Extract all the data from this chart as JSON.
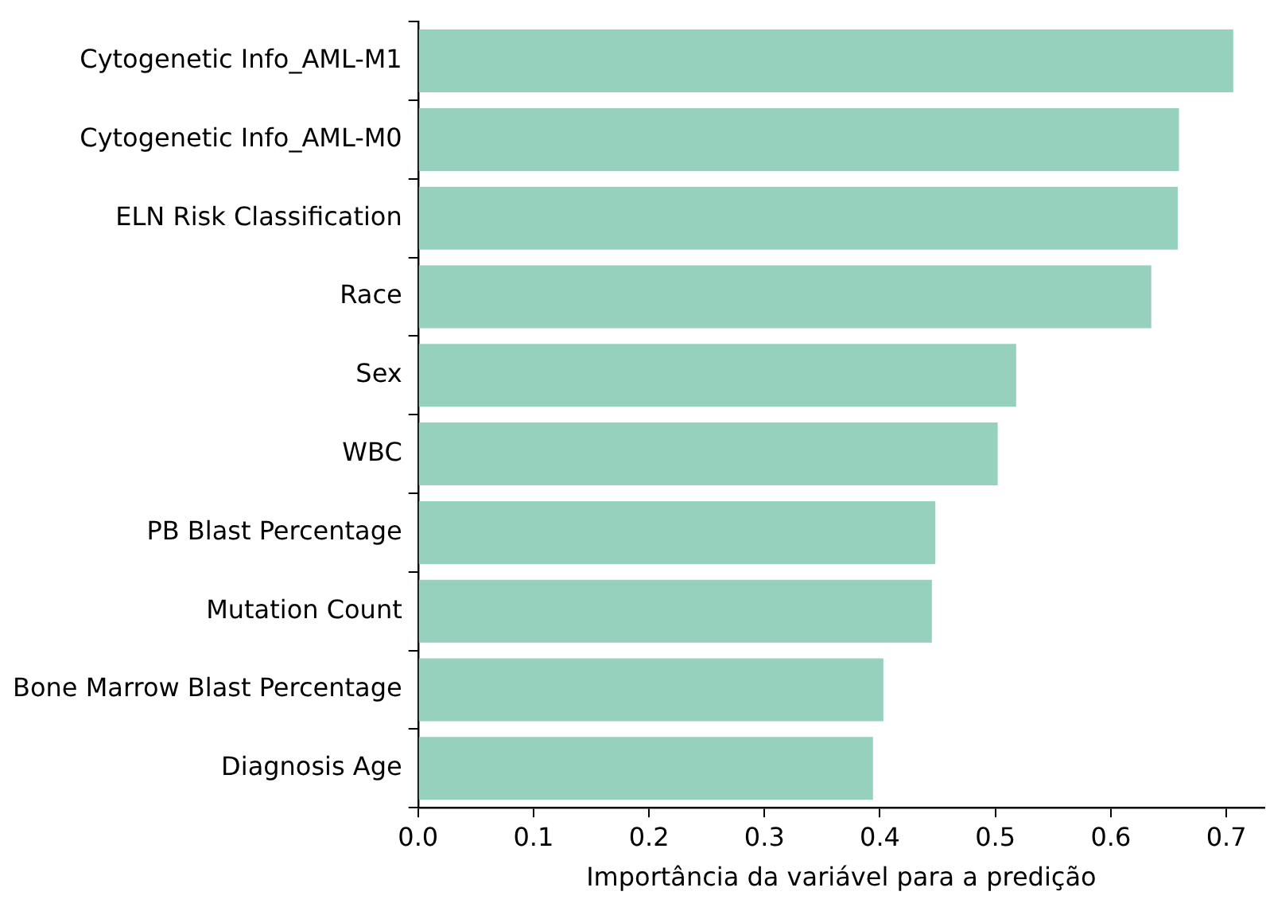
{
  "chart_data": {
    "type": "bar",
    "orientation": "horizontal",
    "xlabel": "Importância da variável para a predição",
    "categories": [
      "Cytogenetic Info_AML-M1",
      "Cytogenetic Info_AML-M0",
      "ELN Risk Classification",
      "Race",
      "Sex",
      "WBC",
      "PB Blast Percentage",
      "Mutation Count",
      "Bone Marrow Blast Percentage",
      "Diagnosis Age"
    ],
    "values": [
      0.706,
      0.659,
      0.658,
      0.635,
      0.518,
      0.502,
      0.448,
      0.445,
      0.403,
      0.394
    ],
    "color": "#95d1bd",
    "xlim": [
      0,
      0.733
    ],
    "xticks": [
      {
        "value": 0,
        "label": "0.0"
      },
      {
        "value": 0.1,
        "label": "0.1"
      },
      {
        "value": 0.2,
        "label": "0.2"
      },
      {
        "value": 0.3,
        "label": "0.3"
      },
      {
        "value": 0.4,
        "label": "0.4"
      },
      {
        "value": 0.5,
        "label": "0.5"
      },
      {
        "value": 0.6,
        "label": "0.6"
      },
      {
        "value": 0.7,
        "label": "0.7"
      }
    ],
    "grid": false,
    "legend": false
  }
}
